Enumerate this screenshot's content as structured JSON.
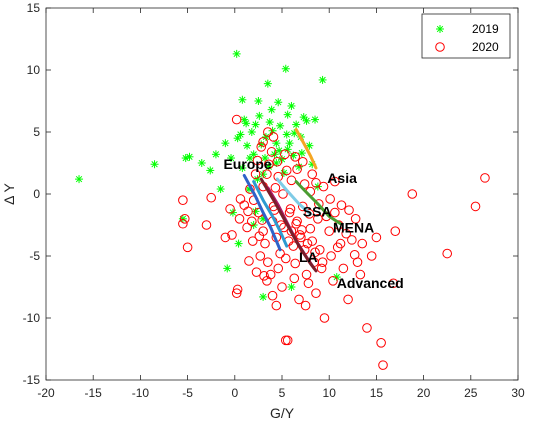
{
  "chart_data": {
    "type": "scatter",
    "xlabel": "G/Y",
    "ylabel": "Δ Y",
    "xlim": [
      -20,
      30
    ],
    "ylim": [
      -15,
      15
    ],
    "xticks": [
      -20,
      -15,
      -10,
      -5,
      0,
      5,
      10,
      15,
      20,
      25,
      30
    ],
    "yticks": [
      -15,
      -10,
      -5,
      0,
      5,
      10,
      15
    ],
    "grid": false,
    "legend_position": "top-right",
    "series": [
      {
        "name": "2019",
        "marker": "asterisk",
        "color": "#00ff00",
        "points": [
          [
            -16.5,
            1.2
          ],
          [
            -8.5,
            2.4
          ],
          [
            -5.2,
            2.9
          ],
          [
            -4.8,
            3.0
          ],
          [
            -3.5,
            2.5
          ],
          [
            -2.6,
            1.9
          ],
          [
            -2.0,
            3.2
          ],
          [
            -1.5,
            0.4
          ],
          [
            -0.8,
            -6.0
          ],
          [
            0.2,
            11.3
          ],
          [
            0.3,
            4.5
          ],
          [
            0.8,
            7.6
          ],
          [
            1.0,
            6.0
          ],
          [
            1.3,
            3.9
          ],
          [
            1.8,
            5.0
          ],
          [
            2.0,
            3.2
          ],
          [
            2.2,
            5.6
          ],
          [
            2.5,
            7.5
          ],
          [
            2.8,
            4.0
          ],
          [
            3.0,
            1.6
          ],
          [
            3.2,
            2.9
          ],
          [
            3.5,
            8.9
          ],
          [
            3.7,
            5.8
          ],
          [
            3.9,
            6.8
          ],
          [
            4.2,
            3.2
          ],
          [
            4.4,
            4.1
          ],
          [
            4.6,
            7.4
          ],
          [
            4.8,
            5.5
          ],
          [
            5.0,
            2.8
          ],
          [
            5.2,
            1.7
          ],
          [
            5.4,
            10.1
          ],
          [
            5.6,
            6.4
          ],
          [
            5.8,
            4.1
          ],
          [
            6.0,
            7.1
          ],
          [
            6.2,
            3.1
          ],
          [
            6.5,
            5.6
          ],
          [
            6.8,
            2.2
          ],
          [
            7.0,
            4.6
          ],
          [
            7.3,
            6.2
          ],
          [
            7.6,
            5.9
          ],
          [
            7.9,
            3.9
          ],
          [
            8.2,
            2.4
          ],
          [
            8.5,
            6.0
          ],
          [
            8.8,
            0.6
          ],
          [
            9.3,
            9.2
          ],
          [
            -1.0,
            4.1
          ],
          [
            -0.4,
            2.9
          ],
          [
            -0.2,
            -1.5
          ],
          [
            0.4,
            -4.0
          ],
          [
            1.5,
            0.4
          ],
          [
            2.2,
            -1.4
          ],
          [
            3.0,
            -2.0
          ],
          [
            2.0,
            -2.5
          ],
          [
            0.6,
            4.8
          ],
          [
            1.2,
            5.7
          ],
          [
            2.6,
            6.3
          ],
          [
            3.3,
            4.6
          ],
          [
            4.0,
            5.1
          ],
          [
            4.7,
            3.5
          ],
          [
            5.5,
            4.8
          ],
          [
            6.3,
            4.9
          ],
          [
            7.1,
            3.3
          ],
          [
            0.8,
            2.1
          ],
          [
            1.6,
            2.9
          ],
          [
            2.4,
            1.2
          ],
          [
            3.6,
            2.2
          ],
          [
            4.4,
            2.5
          ],
          [
            5.6,
            3.6
          ],
          [
            3.0,
            -8.3
          ],
          [
            6.0,
            -7.5
          ],
          [
            10.8,
            -6.7
          ],
          [
            -5.5,
            -2.0
          ]
        ]
      },
      {
        "name": "2020",
        "marker": "circle",
        "color": "#ff0000",
        "points": [
          [
            -5.5,
            -0.5
          ],
          [
            -5.3,
            -2.0
          ],
          [
            -5.0,
            -4.3
          ],
          [
            -5.5,
            -2.4
          ],
          [
            -3.0,
            -2.5
          ],
          [
            -2.5,
            -0.3
          ],
          [
            -1.0,
            -3.5
          ],
          [
            -0.3,
            -3.3
          ],
          [
            0.2,
            -8.0
          ],
          [
            0.3,
            -7.7
          ],
          [
            0.2,
            6.0
          ],
          [
            1.5,
            -5.4
          ],
          [
            1.3,
            -2.7
          ],
          [
            2.0,
            -0.5
          ],
          [
            2.5,
            -1.5
          ],
          [
            3.0,
            -3.0
          ],
          [
            3.2,
            -4.0
          ],
          [
            3.5,
            -5.5
          ],
          [
            3.8,
            -6.5
          ],
          [
            4.0,
            -2.2
          ],
          [
            4.2,
            -1.3
          ],
          [
            4.4,
            -3.5
          ],
          [
            4.6,
            -6.0
          ],
          [
            4.8,
            -4.8
          ],
          [
            5.0,
            -7.5
          ],
          [
            5.2,
            -2.7
          ],
          [
            5.4,
            -5.2
          ],
          [
            5.6,
            -11.8
          ],
          [
            5.4,
            -11.8
          ],
          [
            5.8,
            -1.5
          ],
          [
            6.0,
            -3.0
          ],
          [
            6.2,
            -4.2
          ],
          [
            6.4,
            -5.6
          ],
          [
            6.6,
            -2.2
          ],
          [
            6.8,
            -8.5
          ],
          [
            7.0,
            -3.5
          ],
          [
            7.2,
            -1.0
          ],
          [
            7.4,
            -4.5
          ],
          [
            7.6,
            -6.5
          ],
          [
            7.8,
            -7.2
          ],
          [
            8.0,
            -2.8
          ],
          [
            8.2,
            -3.8
          ],
          [
            8.4,
            -5.5
          ],
          [
            8.6,
            -8.0
          ],
          [
            8.8,
            -2.0
          ],
          [
            9.0,
            -4.5
          ],
          [
            9.2,
            -6.0
          ],
          [
            9.5,
            -10.0
          ],
          [
            10.0,
            -3.0
          ],
          [
            10.2,
            -5.0
          ],
          [
            10.4,
            -7.0
          ],
          [
            10.6,
            -1.5
          ],
          [
            11.0,
            -2.5
          ],
          [
            11.2,
            -4.0
          ],
          [
            11.5,
            -6.0
          ],
          [
            11.8,
            -3.2
          ],
          [
            12.0,
            -8.5
          ],
          [
            12.4,
            -3.7
          ],
          [
            12.8,
            -2.0
          ],
          [
            13.0,
            -5.5
          ],
          [
            13.5,
            -4.0
          ],
          [
            14.0,
            -10.8
          ],
          [
            14.5,
            -5.0
          ],
          [
            15.0,
            -3.5
          ],
          [
            15.5,
            -12.0
          ],
          [
            15.7,
            -13.8
          ],
          [
            16.8,
            -7.2
          ],
          [
            17.0,
            -3.0
          ],
          [
            18.8,
            0.0
          ],
          [
            22.5,
            -4.8
          ],
          [
            25.5,
            -1.0
          ],
          [
            26.5,
            1.3
          ],
          [
            3.6,
            2.4
          ],
          [
            3.9,
            3.4
          ],
          [
            2.8,
            3.8
          ],
          [
            4.5,
            2.6
          ],
          [
            5.3,
            3.2
          ],
          [
            6.0,
            1.1
          ],
          [
            6.6,
            2.0
          ],
          [
            7.4,
            0.8
          ],
          [
            8.2,
            1.6
          ],
          [
            9.4,
            0.6
          ],
          [
            10.6,
            1.0
          ],
          [
            3.0,
            0.6
          ],
          [
            2.2,
            1.6
          ],
          [
            1.6,
            0.4
          ],
          [
            0.6,
            -0.4
          ],
          [
            1.4,
            -1.4
          ],
          [
            2.9,
            -2.1
          ],
          [
            4.3,
            0.5
          ],
          [
            5.1,
            0.0
          ],
          [
            5.9,
            -1.2
          ],
          [
            6.5,
            -2.4
          ],
          [
            7.1,
            -2.9
          ],
          [
            7.9,
            -1.6
          ],
          [
            8.9,
            -0.8
          ],
          [
            9.7,
            -1.8
          ],
          [
            10.1,
            -0.4
          ],
          [
            11.3,
            -0.9
          ],
          [
            12.1,
            -1.3
          ],
          [
            4.1,
            -1.0
          ],
          [
            4.9,
            -2.5
          ],
          [
            5.7,
            -3.8
          ],
          [
            6.3,
            -6.8
          ],
          [
            7.5,
            -9.0
          ],
          [
            4.4,
            -9.0
          ],
          [
            0.5,
            -2.0
          ],
          [
            -0.5,
            -1.2
          ],
          [
            1.9,
            -3.8
          ],
          [
            2.7,
            -5.0
          ],
          [
            3.4,
            -7.0
          ],
          [
            4.0,
            -8.2
          ],
          [
            2.3,
            -6.3
          ],
          [
            3.1,
            -6.6
          ],
          [
            6.9,
            -3.3
          ],
          [
            7.7,
            -4.0
          ],
          [
            8.5,
            -4.7
          ],
          [
            9.3,
            -5.5
          ],
          [
            10.9,
            -4.3
          ],
          [
            12.7,
            -4.9
          ],
          [
            13.3,
            -6.5
          ],
          [
            3.0,
            4.2
          ],
          [
            3.5,
            5.0
          ],
          [
            4.1,
            4.6
          ],
          [
            2.4,
            2.7
          ],
          [
            3.4,
            1.6
          ],
          [
            4.6,
            1.4
          ],
          [
            5.5,
            1.9
          ],
          [
            6.4,
            3.0
          ],
          [
            7.2,
            2.6
          ],
          [
            8.0,
            0.2
          ],
          [
            8.6,
            0.9
          ],
          [
            1.0,
            -0.9
          ],
          [
            1.8,
            -2.2
          ],
          [
            2.6,
            -3.4
          ]
        ]
      }
    ],
    "trajectories": [
      {
        "label": "Europe",
        "color": "#2e62c9",
        "path": [
          [
            1.0,
            1.5
          ],
          [
            2.2,
            -0.2
          ],
          [
            3.0,
            -1.5
          ],
          [
            3.8,
            -2.7
          ],
          [
            4.8,
            -4.5
          ]
        ]
      },
      {
        "label": "LA",
        "color": "#2d9ad0",
        "path": [
          [
            2.0,
            1.0
          ],
          [
            3.0,
            -0.5
          ],
          [
            4.0,
            -1.8
          ],
          [
            4.8,
            -3.0
          ],
          [
            5.5,
            -4.2
          ]
        ]
      },
      {
        "label": "Asia",
        "color": "#f5a623",
        "path": [
          [
            6.5,
            5.2
          ],
          [
            7.3,
            4.1
          ],
          [
            8.0,
            3.1
          ],
          [
            8.6,
            2.1
          ]
        ]
      },
      {
        "label": "SSA",
        "color": "#7ecbe6",
        "path": [
          [
            4.5,
            1.2
          ],
          [
            5.5,
            0.3
          ],
          [
            6.8,
            -0.8
          ],
          [
            8.0,
            -1.6
          ]
        ]
      },
      {
        "label": "MENA",
        "color": "#4a9d31",
        "path": [
          [
            6.5,
            1.0
          ],
          [
            7.5,
            0.2
          ],
          [
            8.8,
            -0.8
          ],
          [
            10.0,
            -1.8
          ],
          [
            11.2,
            -2.4
          ]
        ]
      },
      {
        "label": "Advanced",
        "color": "#b0176a",
        "path": [
          [
            3.5,
            0.5
          ],
          [
            4.6,
            -0.9
          ],
          [
            5.6,
            -2.4
          ],
          [
            6.6,
            -3.9
          ],
          [
            7.6,
            -5.1
          ],
          [
            8.4,
            -6.0
          ]
        ]
      },
      {
        "label": "",
        "color": "#7a1f2b",
        "path": [
          [
            2.8,
            1.2
          ],
          [
            4.2,
            -0.6
          ],
          [
            5.5,
            -2.4
          ],
          [
            6.8,
            -4.2
          ],
          [
            8.0,
            -5.6
          ],
          [
            8.6,
            -6.2
          ]
        ]
      }
    ],
    "annotations": [
      {
        "text": "Europe",
        "x": -1.2,
        "y": 2.0
      },
      {
        "text": "Asia",
        "x": 9.8,
        "y": 0.9
      },
      {
        "text": "SSA",
        "x": 7.2,
        "y": -1.8
      },
      {
        "text": "MENA",
        "x": 10.4,
        "y": -3.1
      },
      {
        "text": "LA",
        "x": 6.8,
        "y": -5.5
      },
      {
        "text": "Advanced",
        "x": 10.8,
        "y": -7.6
      }
    ],
    "legend": [
      {
        "label": "2019",
        "marker": "asterisk",
        "color": "#00ff00"
      },
      {
        "label": "2020",
        "marker": "circle",
        "color": "#ff0000"
      }
    ]
  }
}
